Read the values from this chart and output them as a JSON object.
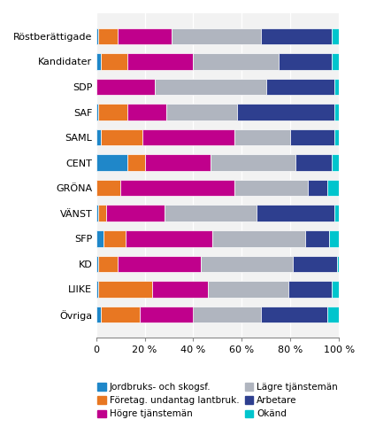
{
  "categories": [
    "Röstberättigade",
    "Kandidater",
    "SDP",
    "SAF",
    "SAML",
    "CENT",
    "GRÖNA",
    "VÄNST",
    "SFP",
    "KD",
    "LIIKE",
    "Övriga"
  ],
  "segment_order": [
    "Jordbruks- och skogsf.",
    "Företag. undantag lantbruk.",
    "Högre tjänstemän",
    "Lägre tjänstemän",
    "Arbetare",
    "Okänd"
  ],
  "segments": {
    "Jordbruks- och skogsf.": {
      "color": "#1f87c9",
      "values": [
        1,
        2,
        0,
        1,
        2,
        13,
        0,
        1,
        3,
        1,
        1,
        2
      ]
    },
    "Företag. undantag lantbruk.": {
      "color": "#e87722",
      "values": [
        8,
        11,
        0,
        12,
        17,
        7,
        10,
        3,
        9,
        8,
        22,
        16
      ]
    },
    "Högre tjänstemän": {
      "color": "#c0008c",
      "values": [
        22,
        27,
        24,
        16,
        38,
        27,
        47,
        24,
        36,
        34,
        23,
        22
      ]
    },
    "Lägre tjänstemän": {
      "color": "#b0b5bf",
      "values": [
        37,
        35,
        46,
        29,
        23,
        35,
        30,
        38,
        38,
        38,
        33,
        28
      ]
    },
    "Arbetare": {
      "color": "#2e3f8f",
      "values": [
        29,
        22,
        28,
        40,
        18,
        15,
        8,
        32,
        10,
        18,
        18,
        27
      ]
    },
    "Okänd": {
      "color": "#00c5cd",
      "values": [
        3,
        3,
        2,
        2,
        2,
        3,
        5,
        2,
        4,
        1,
        3,
        5
      ]
    }
  },
  "legend_order_col1": [
    "Jordbruks- och skogsf.",
    "Högre tjänstemän",
    "Arbetare"
  ],
  "legend_order_col2": [
    "Företag. undantag lantbruk.",
    "Lägre tjänstemän",
    "Okänd"
  ],
  "xlim": [
    0,
    100
  ],
  "xticks": [
    0,
    20,
    40,
    60,
    80,
    100
  ],
  "xticklabels": [
    "0",
    "20 %",
    "40 %",
    "60 %",
    "80 %",
    "100 %"
  ],
  "background_color": "#ffffff",
  "plot_bg_color": "#f2f2f2",
  "bar_height": 0.65,
  "figsize": [
    4.16,
    4.91
  ],
  "dpi": 100
}
